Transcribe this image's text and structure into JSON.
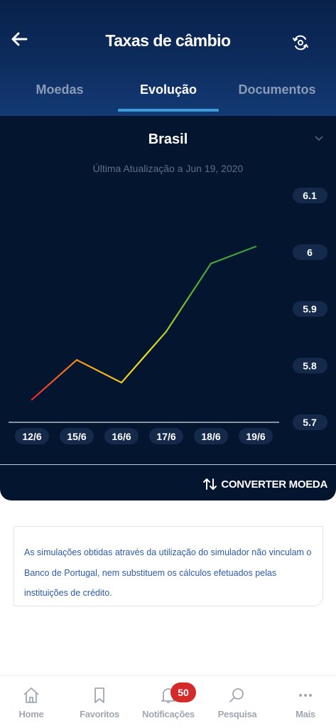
{
  "header": {
    "title": "Taxas de câmbio",
    "back_icon": "arrow-left-icon",
    "refresh_icon": "refresh-icon"
  },
  "tabs": [
    {
      "label": "Moedas",
      "active": false
    },
    {
      "label": "Evolução",
      "active": true
    },
    {
      "label": "Documentos",
      "active": false
    }
  ],
  "panel": {
    "country": "Brasil",
    "updated": "Última Atualização a Jun 19, 2020",
    "convert_label": "CONVERTER MOEDA"
  },
  "chart_data": {
    "type": "line",
    "categories": [
      "12/6",
      "15/6",
      "16/6",
      "17/6",
      "18/6",
      "19/6"
    ],
    "values": [
      5.74,
      5.81,
      5.77,
      5.86,
      5.98,
      6.01
    ],
    "y_ticks": [
      "6.1",
      "6",
      "5.9",
      "5.8",
      "5.7"
    ],
    "ylim": [
      5.7,
      6.1
    ],
    "colors": [
      "#e8262b",
      "#f7a51a",
      "#f5e21c",
      "#49a83e",
      "#3a9b3a"
    ]
  },
  "disclaimer": {
    "text": "As simulações obtidas através da utilização do simulador não vinculam o Banco de Portugal, nem substituem os cálculos efetuados pelas instituições de crédito."
  },
  "bottom_nav": [
    {
      "label": "Home",
      "icon": "home-icon"
    },
    {
      "label": "Favoritos",
      "icon": "bookmark-icon"
    },
    {
      "label": "Notificações",
      "icon": "bell-icon",
      "badge": "50"
    },
    {
      "label": "Pesquisa",
      "icon": "search-icon"
    },
    {
      "label": "Mais",
      "icon": "more-icon"
    }
  ]
}
